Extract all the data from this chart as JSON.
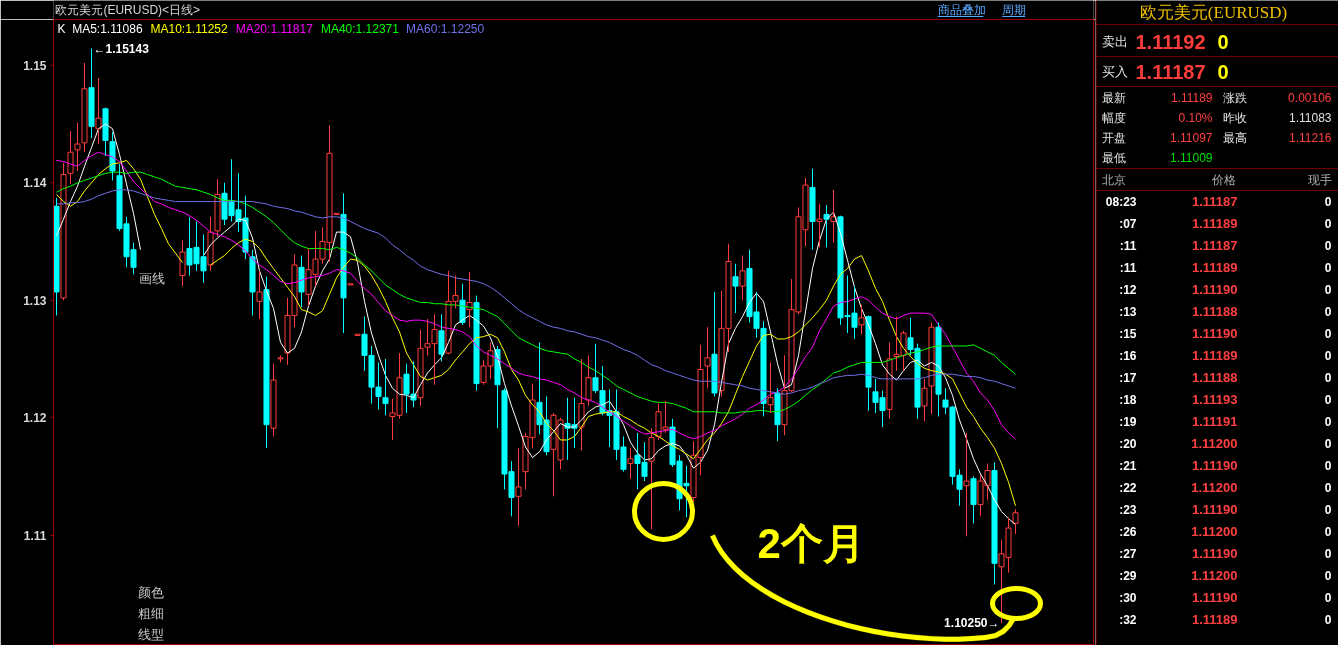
{
  "chart_data": [
    {
      "type": "candlestick",
      "title": "欧元美元(EURUSD)<日线>",
      "categories": [
        null,
        null,
        null,
        null,
        null,
        null,
        null,
        null,
        null,
        null,
        null,
        null,
        null,
        null,
        null,
        null,
        null,
        null,
        null,
        null,
        null,
        null,
        null,
        null,
        null,
        null,
        null,
        null,
        null,
        null,
        null,
        null,
        null,
        null,
        null,
        null,
        null,
        null,
        null,
        null,
        null,
        null,
        null,
        null,
        null,
        null,
        null,
        null,
        null,
        null,
        null,
        null,
        null,
        null,
        null,
        null,
        null,
        null,
        null,
        null,
        null,
        null,
        null,
        null,
        null,
        null,
        null,
        null,
        null,
        null,
        null,
        null,
        null,
        null,
        null,
        null,
        null,
        null,
        null,
        null,
        null,
        null,
        null,
        null,
        null,
        null,
        null,
        null,
        null,
        null,
        null,
        null,
        null,
        null,
        null,
        null,
        null,
        null,
        null,
        null,
        null,
        null,
        null,
        null,
        null,
        null,
        null,
        null,
        null,
        null,
        null,
        null,
        null,
        null,
        null,
        null,
        null,
        null,
        null,
        null,
        null,
        null,
        null,
        null,
        null,
        null,
        null,
        null,
        null,
        null,
        null,
        null,
        null,
        null,
        null,
        null,
        null,
        null
      ],
      "ohlc": [
        [
          1.138,
          1.1387,
          1.1287,
          1.1307
        ],
        [
          1.1302,
          1.1417,
          1.13,
          1.1407
        ],
        [
          1.1408,
          1.1444,
          1.1399,
          1.1426
        ],
        [
          1.1428,
          1.1451,
          1.141,
          1.1433
        ],
        [
          1.1434,
          1.1502,
          1.1426,
          1.148
        ],
        [
          1.1481,
          1.15143,
          1.1438,
          1.1448
        ],
        [
          1.1446,
          1.1489,
          1.1433,
          1.1455
        ],
        [
          1.1463,
          1.1464,
          1.1423,
          1.1436
        ],
        [
          1.1435,
          1.1443,
          1.1402,
          1.141
        ],
        [
          1.1406,
          1.1416,
          1.1359,
          1.1361
        ],
        [
          1.1365,
          1.1371,
          1.1328,
          1.1337
        ],
        [
          1.1343,
          1.1349,
          1.1322,
          1.1328
        ],
        null,
        null,
        null,
        null,
        null,
        null,
        [
          1.1321,
          1.1351,
          1.1312,
          1.1341
        ],
        [
          1.1344,
          1.1371,
          1.1321,
          1.133
        ],
        [
          1.1345,
          1.1367,
          1.1325,
          1.1331
        ],
        [
          1.1337,
          1.1356,
          1.1315,
          1.1325
        ],
        [
          1.133,
          1.1371,
          1.1325,
          1.1358
        ],
        [
          1.1359,
          1.1403,
          1.1354,
          1.139
        ],
        [
          1.1391,
          1.14,
          1.1364,
          1.1369
        ],
        [
          1.1384,
          1.142,
          1.1367,
          1.1372
        ],
        [
          1.1377,
          1.1408,
          1.1358,
          1.1367
        ],
        [
          1.137,
          1.1389,
          1.1335,
          1.1341
        ],
        [
          1.1337,
          1.1343,
          1.1287,
          1.1307
        ],
        [
          1.1299,
          1.1325,
          1.1284,
          1.1307
        ],
        [
          1.1309,
          1.132,
          1.1174,
          1.1194
        ],
        [
          1.1191,
          1.1246,
          1.1184,
          1.1232
        ],
        [
          1.125,
          1.1253,
          1.1247,
          1.1251
        ],
        [
          1.1255,
          1.1302,
          1.1245,
          1.1287
        ],
        [
          1.1287,
          1.1339,
          1.1277,
          1.133
        ],
        [
          1.1328,
          1.1338,
          1.1294,
          1.1307
        ],
        [
          1.1305,
          1.1344,
          1.1295,
          1.1326
        ],
        [
          1.1322,
          1.1359,
          1.1312,
          1.1335
        ],
        [
          1.1335,
          1.1362,
          1.1331,
          1.135
        ],
        [
          1.1349,
          1.1449,
          1.1333,
          1.1425
        ],
        [
          1.1373,
          1.1374,
          1.1373,
          1.1374
        ],
        [
          1.1373,
          1.1391,
          1.1272,
          1.1302
        ],
        [
          1.1313,
          1.1314,
          1.1313,
          1.1314
        ],
        [
          1.127,
          1.1271,
          1.127,
          1.1271
        ],
        [
          1.1271,
          1.1286,
          1.124,
          1.1253
        ],
        [
          1.1253,
          1.1261,
          1.1212,
          1.1226
        ],
        [
          1.1226,
          1.1247,
          1.1207,
          1.1218
        ],
        [
          1.1217,
          1.125,
          1.1202,
          1.1212
        ],
        [
          1.1201,
          1.1216,
          1.1181,
          1.1204
        ],
        [
          1.1202,
          1.1255,
          1.1199,
          1.1234
        ],
        [
          1.1237,
          1.1246,
          1.1204,
          1.122
        ],
        [
          1.122,
          1.1248,
          1.1209,
          1.1215
        ],
        [
          1.1217,
          1.1275,
          1.121,
          1.1259
        ],
        [
          1.126,
          1.1284,
          1.1253,
          1.1263
        ],
        [
          1.1263,
          1.1288,
          1.1228,
          1.1275
        ],
        [
          1.1274,
          1.1288,
          1.1248,
          1.1254
        ],
        [
          1.1255,
          1.1325,
          1.1254,
          1.1299
        ],
        [
          1.1299,
          1.1321,
          1.1293,
          1.1304
        ],
        [
          1.13,
          1.1314,
          1.1279,
          1.1281
        ],
        [
          1.1292,
          1.1324,
          1.1277,
          1.1298
        ],
        [
          1.1298,
          1.1304,
          1.1223,
          1.1229
        ],
        [
          1.123,
          1.1249,
          1.1228,
          1.1244
        ],
        [
          1.1244,
          1.1264,
          1.1233,
          1.1257
        ],
        [
          1.1258,
          1.1261,
          1.1191,
          1.1228
        ],
        [
          1.1223,
          1.1225,
          1.1139,
          1.1152
        ],
        [
          1.1154,
          1.1163,
          1.1116,
          1.1132
        ],
        [
          1.1133,
          1.1174,
          1.1108,
          1.1141
        ],
        [
          1.1154,
          1.1187,
          1.1139,
          1.1184
        ],
        [
          1.1183,
          1.1229,
          1.1174,
          1.1215
        ],
        [
          1.1213,
          1.1264,
          1.1186,
          1.1194
        ],
        [
          1.1198,
          1.1218,
          1.1168,
          1.1171
        ],
        [
          1.1173,
          1.1204,
          1.1133,
          1.1202
        ],
        [
          1.1164,
          1.12,
          1.1156,
          1.1198
        ],
        [
          1.1195,
          1.1217,
          1.1164,
          1.1191
        ],
        [
          1.1194,
          1.1217,
          1.1174,
          1.1191
        ],
        [
          1.1192,
          1.125,
          1.1172,
          1.1212
        ],
        [
          1.1215,
          1.1253,
          1.121,
          1.1234
        ],
        [
          1.1234,
          1.1263,
          1.1221,
          1.1223
        ],
        [
          1.1223,
          1.1244,
          1.1202,
          1.1204
        ],
        [
          1.1206,
          1.1224,
          1.1175,
          1.1202
        ],
        [
          1.1205,
          1.1224,
          1.1164,
          1.1173
        ],
        [
          1.1175,
          1.1184,
          1.1154,
          1.1156
        ],
        [
          1.1161,
          1.1174,
          1.1148,
          1.1165
        ],
        [
          1.1168,
          1.1187,
          1.1139,
          1.1161
        ],
        [
          1.1162,
          1.1179,
          1.1146,
          1.115
        ],
        [
          1.1163,
          1.1191,
          1.1105,
          1.1183
        ],
        [
          1.1184,
          1.1212,
          1.1181,
          1.1205
        ],
        [
          1.119,
          1.1214,
          1.1187,
          1.1192
        ],
        [
          1.1192,
          1.1199,
          1.1158,
          1.116
        ],
        [
          1.1163,
          1.1168,
          1.1121,
          1.1131
        ],
        [
          1.1144,
          1.1159,
          1.1115,
          1.1142
        ],
        [
          1.1132,
          1.118,
          1.1128,
          1.1168
        ],
        [
          1.1166,
          1.1262,
          1.1151,
          1.1241
        ],
        [
          1.1244,
          1.1277,
          1.1225,
          1.1251
        ],
        [
          1.1254,
          1.1307,
          1.1218,
          1.1221
        ],
        [
          1.1223,
          1.1308,
          1.1218,
          1.1276
        ],
        [
          1.1276,
          1.1348,
          1.1256,
          1.1333
        ],
        [
          1.132,
          1.1331,
          1.1289,
          1.1312
        ],
        [
          1.1312,
          1.1338,
          1.13,
          1.1325
        ],
        [
          1.1327,
          1.1343,
          1.1281,
          1.1286
        ],
        [
          1.129,
          1.1307,
          1.1268,
          1.1276
        ],
        [
          1.1276,
          1.1282,
          1.1201,
          1.1212
        ],
        [
          1.1211,
          1.1247,
          1.1204,
          1.1217
        ],
        [
          1.1221,
          1.1225,
          1.118,
          1.1194
        ],
        [
          1.1194,
          1.1253,
          1.1185,
          1.1223
        ],
        [
          1.1223,
          1.1318,
          1.1222,
          1.1292
        ],
        [
          1.129,
          1.1379,
          1.1288,
          1.1371
        ],
        [
          1.136,
          1.1404,
          1.1346,
          1.1398
        ],
        [
          1.1396,
          1.1412,
          1.1343,
          1.1367
        ],
        [
          1.1367,
          1.1382,
          1.1345,
          1.1369
        ],
        [
          1.1373,
          1.1381,
          1.1345,
          1.1369
        ],
        [
          1.1367,
          1.1394,
          1.1349,
          1.1371
        ],
        [
          1.1371,
          1.1372,
          1.1279,
          1.1285
        ],
        [
          1.1287,
          1.1321,
          1.1272,
          1.1286
        ],
        [
          1.1289,
          1.1312,
          1.1267,
          1.1277
        ],
        [
          1.1279,
          1.1296,
          1.1271,
          1.1285
        ],
        [
          1.1286,
          1.1287,
          1.1206,
          1.1226
        ],
        [
          1.1222,
          1.1233,
          1.1204,
          1.1213
        ],
        [
          1.1217,
          1.1223,
          1.1192,
          1.1206
        ],
        [
          1.1207,
          1.1264,
          1.1199,
          1.125
        ],
        [
          1.1252,
          1.1286,
          1.124,
          1.1254
        ],
        [
          1.1253,
          1.1274,
          1.124,
          1.1272
        ],
        [
          1.1268,
          1.1285,
          1.1253,
          1.1258
        ],
        [
          1.1259,
          1.1263,
          1.1199,
          1.1209
        ],
        [
          1.121,
          1.1233,
          1.1197,
          1.1225
        ],
        [
          1.1227,
          1.1281,
          1.1203,
          1.1277
        ],
        [
          1.1277,
          1.1281,
          1.1201,
          1.122
        ],
        [
          1.1215,
          1.1225,
          1.1203,
          1.1209
        ],
        [
          1.1209,
          1.121,
          1.1143,
          1.115
        ],
        [
          1.1151,
          1.1156,
          1.1125,
          1.1139
        ],
        [
          1.1142,
          1.1187,
          1.1099,
          1.1146
        ],
        [
          1.1148,
          1.115,
          1.111,
          1.1126
        ],
        [
          1.1126,
          1.1151,
          1.1116,
          1.1146
        ],
        [
          1.1142,
          1.1161,
          1.113,
          1.1155
        ],
        [
          1.1155,
          1.1162,
          1.1058,
          1.1076
        ],
        [
          1.1073,
          1.1096,
          1.1025,
          1.1084
        ],
        [
          1.1081,
          1.1115,
          1.1068,
          1.1106
        ],
        [
          1.111,
          1.1122,
          1.1101,
          1.1119
        ]
      ],
      "colors": [
        "#00ffff",
        "#ff3c3c",
        "#ff3c3c",
        "#ff3c3c",
        "#ff3c3c",
        "#00ffff",
        "#ff3c3c",
        "#00ffff",
        "#00ffff",
        "#00ffff",
        "#00ffff",
        "#00ffff",
        null,
        null,
        null,
        null,
        null,
        null,
        "#ff3c3c",
        "#00ffff",
        "#00ffff",
        "#00ffff",
        "#ff3c3c",
        "#ff3c3c",
        "#00ffff",
        "#00ffff",
        "#00ffff",
        "#00ffff",
        "#00ffff",
        "#ff3c3c",
        "#00ffff",
        "#ff3c3c",
        "#ff3c3c",
        "#ff3c3c",
        "#ff3c3c",
        "#00ffff",
        "#ff3c3c",
        "#ff3c3c",
        "#ff3c3c",
        "#ff3c3c",
        "#ff3c3c",
        "#00ffff",
        "#ff3c3c",
        "#ff3c3c",
        "#00ffff",
        "#00ffff",
        "#00ffff",
        "#00ffff",
        "#ff3c3c",
        "#ff3c3c",
        "#00ffff",
        "#00ffff",
        "#ff3c3c",
        "#ff3c3c",
        "#ff3c3c",
        "#00ffff",
        "#ff3c3c",
        "#ff3c3c",
        "#00ffff",
        "#ff3c3c",
        "#00ffff",
        "#ff3c3c",
        "#ff3c3c",
        "#00ffff",
        "#00ffff",
        "#00ffff",
        "#ff3c3c",
        "#ff3c3c",
        "#ff3c3c",
        "#00ffff",
        "#00ffff",
        "#ff3c3c",
        "#ff3c3c",
        "#00ffff",
        "#00ffff",
        "#ff3c3c",
        "#ff3c3c",
        "#00ffff",
        "#00ffff",
        "#00ffff",
        "#00ffff",
        "#00ffff",
        "#ff3c3c",
        "#00ffff",
        "#00ffff",
        "#ff3c3c",
        "#ff3c3c",
        "#ff3c3c",
        "#00ffff",
        "#00ffff",
        "#00ffff",
        "#ff3c3c",
        "#ff3c3c",
        "#ff3c3c",
        "#00ffff",
        "#ff3c3c",
        "#ff3c3c",
        "#00ffff",
        "#ff3c3c",
        "#00ffff",
        "#00ffff",
        "#00ffff",
        "#ff3c3c",
        "#00ffff",
        "#ff3c3c",
        "#ff3c3c",
        "#ff3c3c",
        "#ff3c3c",
        "#00ffff",
        "#ff3c3c",
        "#00ffff",
        "#ff3c3c",
        "#00ffff",
        "#00ffff",
        "#00ffff",
        "#ff3c3c",
        "#00ffff",
        "#00ffff",
        "#00ffff",
        "#ff3c3c",
        "#ff3c3c",
        "#ff3c3c",
        "#00ffff",
        "#00ffff",
        "#ff3c3c",
        "#ff3c3c",
        "#00ffff",
        "#00ffff",
        "#00ffff",
        "#00ffff",
        "#ff3c3c",
        "#00ffff",
        "#ff3c3c",
        "#ff3c3c",
        "#00ffff",
        "#ff3c3c",
        "#ff3c3c",
        "#ff3c3c"
      ],
      "series": [
        {
          "name": "MA5:1.11086",
          "type": "line",
          "color": "#ffffff",
          "values": [
            1.1355,
            1.1369,
            1.1384,
            1.1397,
            1.1414,
            1.143,
            1.1446,
            1.145,
            1.1446,
            1.1424,
            1.1399,
            1.1374,
            1.1343,
            null,
            null,
            null,
            null,
            null,
            null,
            null,
            null,
            1.1338,
            1.1347,
            1.1353,
            1.1358,
            1.1363,
            1.1369,
            1.1368,
            1.1353,
            1.1325,
            1.1308,
            1.1293,
            1.1264,
            1.1255,
            1.1259,
            1.1273,
            1.1295,
            1.1312,
            1.1325,
            1.1335,
            1.1358,
            1.1358,
            1.1354,
            1.1332,
            1.1299,
            1.1272,
            1.1253,
            1.1236,
            1.1225,
            1.122,
            1.1219,
            1.1217,
            1.1228,
            1.1238,
            1.1245,
            1.1251,
            1.1264,
            1.1279,
            1.1283,
            1.1287,
            1.1283,
            1.1278,
            1.1268,
            1.1252,
            1.1229,
            1.121,
            1.1193,
            1.1175,
            1.1166,
            1.1171,
            1.1181,
            1.1188,
            1.1195,
            1.1192,
            1.1192,
            1.1198,
            1.1205,
            1.1209,
            1.1211,
            1.1214,
            1.1205,
            1.1194,
            1.1179,
            1.117,
            1.1164,
            1.1165,
            1.1172,
            1.1176,
            1.1178,
            1.1176,
            1.1168,
            1.1157,
            1.1162,
            1.1172,
            1.1194,
            1.123,
            1.1263,
            1.1276,
            1.1286,
            1.1298,
            1.1306,
            1.1299,
            1.1273,
            1.1246,
            1.1225,
            1.1228,
            1.1253,
            1.129,
            1.1327,
            1.1351,
            1.1369,
            1.1375,
            1.1357,
            1.1334,
            1.1311,
            1.1293,
            1.1279,
            1.1263,
            1.1245,
            1.1237,
            1.1232,
            1.124,
            1.1247,
            1.1249,
            1.1244,
            1.1247,
            1.1244,
            1.1234,
            1.1219,
            1.1198,
            1.1182,
            1.1165,
            1.1152,
            1.1142,
            1.113,
            1.112,
            1.1114,
            1.1109
          ]
        },
        {
          "name": "MA10:1.11252",
          "type": "line",
          "color": "#ffff00",
          "values": [
            1.139,
            1.1384,
            1.138,
            1.1384,
            1.1393,
            1.14,
            1.1407,
            1.1412,
            1.1416,
            1.1417,
            1.1419,
            1.1412,
            1.1403,
            1.1388,
            1.1373,
            1.1361,
            1.1348,
            1.134,
            1.1332,
            null,
            null,
            null,
            1.133,
            1.1334,
            1.1338,
            1.1344,
            1.1349,
            1.1352,
            1.135,
            1.1344,
            1.1335,
            1.1327,
            1.1319,
            1.1311,
            1.1303,
            1.1292,
            1.129,
            1.1287,
            1.1291,
            1.1305,
            1.1319,
            1.1328,
            1.1335,
            1.1334,
            1.1329,
            1.1321,
            1.1311,
            1.1299,
            1.1285,
            1.1273,
            1.1255,
            1.1245,
            1.1235,
            1.1232,
            1.1234,
            1.1236,
            1.1241,
            1.1249,
            1.1256,
            1.1263,
            1.1268,
            1.1269,
            1.1271,
            1.1268,
            1.1256,
            1.1241,
            1.1232,
            1.1219,
            1.1211,
            1.1205,
            1.1195,
            1.1189,
            1.1181,
            1.1181,
            1.1184,
            1.1192,
            1.1201,
            1.1203,
            1.1204,
            1.1205,
            1.1205,
            1.1201,
            1.1198,
            1.1194,
            1.1191,
            1.1187,
            1.1184,
            1.118,
            1.1176,
            1.1173,
            1.1169,
            1.1165,
            1.1173,
            1.1181,
            1.1187,
            1.1195,
            1.1205,
            1.122,
            1.1235,
            1.1248,
            1.1261,
            1.127,
            1.1271,
            1.1267,
            1.1267,
            1.1269,
            1.1273,
            1.1279,
            1.1285,
            1.1292,
            1.13,
            1.1312,
            1.1322,
            1.1327,
            1.1335,
            1.1338,
            1.1325,
            1.131,
            1.1299,
            1.1283,
            1.1269,
            1.1259,
            1.1252,
            1.1246,
            1.1242,
            1.124,
            1.1239,
            1.1237,
            1.1233,
            1.1221,
            1.1209,
            1.1201,
            1.1191,
            1.1183,
            1.1174,
            1.1161,
            1.1145,
            1.1125
          ]
        },
        {
          "name": "MA20:1.11817",
          "type": "line",
          "color": "#ff00ff",
          "values": [
            1.1419,
            1.1418,
            1.1416,
            1.1414,
            1.1419,
            1.1423,
            1.1426,
            1.1424,
            1.1422,
            1.1418,
            1.141,
            1.1401,
            1.1395,
            1.139,
            1.1384,
            1.1382,
            1.1379,
            1.1377,
            1.1375,
            1.1372,
            1.1368,
            1.1363,
            1.1358,
            1.1356,
            1.1354,
            1.1351,
            1.1347,
            1.1342,
            1.1335,
            1.133,
            1.1326,
            1.1321,
            1.1316,
            1.1314,
            1.1315,
            1.1317,
            1.1319,
            1.132,
            1.1321,
            1.1323,
            1.1326,
            1.1325,
            1.1323,
            1.1316,
            1.131,
            1.1305,
            1.1298,
            1.1291,
            1.1287,
            1.1283,
            1.1282,
            1.1283,
            1.1283,
            1.1282,
            1.128,
            1.1277,
            1.1276,
            1.1275,
            1.1273,
            1.1269,
            1.1261,
            1.1256,
            1.1253,
            1.125,
            1.1246,
            1.1242,
            1.1238,
            1.1236,
            1.1235,
            1.1233,
            1.1232,
            1.123,
            1.1228,
            1.1224,
            1.1221,
            1.1217,
            1.1215,
            1.1213,
            1.1209,
            1.1205,
            1.1201,
            1.1197,
            1.1193,
            1.1189,
            1.1186,
            1.1187,
            1.1188,
            1.1189,
            1.119,
            1.1187,
            1.1184,
            1.1182,
            1.1184,
            1.1187,
            1.1189,
            1.1193,
            1.1196,
            1.1199,
            1.1203,
            1.1208,
            1.1211,
            1.1215,
            1.122,
            1.1222,
            1.1226,
            1.1233,
            1.1242,
            1.1252,
            1.126,
            1.1274,
            1.1284,
            1.1295,
            1.1298,
            1.1299,
            1.1301,
            1.1303,
            1.13,
            1.1294,
            1.1289,
            1.1286,
            1.1284,
            1.1287,
            1.1289,
            1.1289,
            1.1289,
            1.1288,
            1.1279,
            1.1271,
            1.126,
            1.1249,
            1.1238,
            1.1231,
            1.1221,
            1.1215,
            1.1206,
            1.1194,
            1.1187,
            1.1182
          ]
        },
        {
          "name": "MA40:1.12371",
          "type": "line",
          "color": "#00ff00",
          "values": [
            1.1392,
            1.1395,
            1.1397,
            1.14,
            1.1402,
            1.1404,
            1.1406,
            1.1408,
            1.1409,
            1.1409,
            1.1408,
            1.1409,
            1.1409,
            1.1407,
            1.1405,
            1.1403,
            1.14,
            1.1397,
            1.1396,
            1.1395,
            1.1394,
            1.1392,
            1.139,
            1.1387,
            1.1385,
            1.1385,
            1.1384,
            1.1382,
            1.1379,
            1.1375,
            1.1371,
            1.1366,
            1.136,
            1.1354,
            1.1349,
            1.1346,
            1.1344,
            1.1344,
            1.1344,
            1.1343,
            1.1345,
            1.1343,
            1.134,
            1.1336,
            1.133,
            1.1325,
            1.1319,
            1.1313,
            1.1309,
            1.1305,
            1.1302,
            1.13,
            1.1298,
            1.1298,
            1.1297,
            1.1297,
            1.1296,
            1.1296,
            1.1295,
            1.1294,
            1.1293,
            1.1292,
            1.1289,
            1.1286,
            1.128,
            1.1274,
            1.1268,
            1.1265,
            1.1262,
            1.1259,
            1.1257,
            1.1256,
            1.1255,
            1.1254,
            1.125,
            1.1247,
            1.1243,
            1.124,
            1.1236,
            1.1232,
            1.1227,
            1.1224,
            1.1221,
            1.1218,
            1.1216,
            1.1214,
            1.1213,
            1.1213,
            1.1212,
            1.121,
            1.1208,
            1.1205,
            1.1205,
            1.1205,
            1.1205,
            1.1204,
            1.1204,
            1.1204,
            1.1205,
            1.1205,
            1.1206,
            1.1206,
            1.1205,
            1.1205,
            1.1207,
            1.121,
            1.1214,
            1.1219,
            1.1224,
            1.1228,
            1.1233,
            1.1238,
            1.124,
            1.1243,
            1.1245,
            1.1247,
            1.1247,
            1.1247,
            1.1247,
            1.1249,
            1.1251,
            1.1253,
            1.1255,
            1.1256,
            1.1258,
            1.126,
            1.1261,
            1.1261,
            1.1261,
            1.1261,
            1.1261,
            1.1262,
            1.1259,
            1.1256,
            1.1253,
            1.1247,
            1.1242,
            1.1237
          ]
        },
        {
          "name": "MA60:1.12250",
          "type": "line",
          "color": "#7070e8",
          "values": [
            1.1382,
            1.1382,
            1.1383,
            1.1383,
            1.1384,
            1.1386,
            1.1389,
            1.1391,
            1.1393,
            1.1394,
            1.1394,
            1.1393,
            1.1391,
            1.1389,
            1.1387,
            1.1386,
            1.1385,
            1.1384,
            1.1384,
            1.1384,
            1.1384,
            1.1384,
            1.1384,
            1.1384,
            1.1384,
            1.1384,
            1.1384,
            1.1384,
            1.1384,
            1.1383,
            1.1382,
            1.138,
            1.1379,
            1.1378,
            1.1376,
            1.1375,
            1.1373,
            1.1371,
            1.137,
            1.1371,
            1.1371,
            1.137,
            1.1367,
            1.1364,
            1.1361,
            1.1359,
            1.1357,
            1.1353,
            1.1347,
            1.1343,
            1.1338,
            1.1334,
            1.1329,
            1.1326,
            1.1324,
            1.1322,
            1.1321,
            1.1319,
            1.1318,
            1.1317,
            1.1316,
            1.1314,
            1.1311,
            1.1307,
            1.1302,
            1.1297,
            1.1292,
            1.1288,
            1.1285,
            1.1282,
            1.1279,
            1.1277,
            1.1276,
            1.1274,
            1.1273,
            1.1271,
            1.1269,
            1.1268,
            1.1266,
            1.1264,
            1.1261,
            1.1258,
            1.1256,
            1.1253,
            1.1249,
            1.1245,
            1.1243,
            1.124,
            1.1238,
            1.1236,
            1.1234,
            1.1232,
            1.1231,
            1.1231,
            1.1231,
            1.123,
            1.1229,
            1.1228,
            1.1227,
            1.1225,
            1.1224,
            1.1223,
            1.1222,
            1.1221,
            1.122,
            1.1221,
            1.1223,
            1.1224,
            1.1226,
            1.1229,
            1.1231,
            1.1234,
            1.1235,
            1.1236,
            1.1236,
            1.1237,
            1.1236,
            1.1234,
            1.1233,
            1.1233,
            1.1233,
            1.1233,
            1.1233,
            1.1233,
            1.1234,
            1.1236,
            1.1237,
            1.1237,
            1.1237,
            1.1236,
            1.1235,
            1.1235,
            1.1234,
            1.1232,
            1.1231,
            1.1229,
            1.1227,
            1.1225
          ]
        }
      ],
      "ylim": [
        1.1006,
        1.1539
      ],
      "yticks": [
        1.11,
        1.12,
        1.13,
        1.14,
        1.15
      ],
      "tick_labels": "y",
      "legend": "top left",
      "legend_title": "K",
      "annotations": [
        "←1.15143",
        "1.10250→",
        "2个月",
        "商品叠加",
        "周期",
        "画线",
        "颜色",
        "粗细",
        "线型"
      ]
    },
    {
      "type": "other",
      "title": "欧元美元(EURUSD)",
      "annotations": [
        "卖出",
        "1.11192",
        "0",
        "买入",
        "1.11187",
        "0",
        "最新",
        "1.11189",
        "涨跌",
        "0.00106",
        "幅度",
        "0.10%",
        "昨收",
        "1.11083",
        "开盘",
        "1.11097",
        "最高",
        "1.11216",
        "最低",
        "1.11009",
        "北京",
        "价格",
        "现手",
        "08:23",
        "1.11187",
        "0",
        ":07",
        "1.11189",
        "0",
        ":11",
        "1.11187",
        "0",
        ":11",
        "1.11189",
        "0",
        ":12",
        "1.11190",
        "0",
        ":13",
        "1.11188",
        "0",
        ":15",
        "1.11190",
        "0",
        ":16",
        "1.11189",
        "0",
        ":17",
        "1.11188",
        "0",
        ":18",
        "1.11193",
        "0",
        ":19",
        "1.11191",
        "0",
        ":20",
        "1.11200",
        "0",
        ":21",
        "1.11190",
        "0",
        ":22",
        "1.11200",
        "0",
        ":23",
        "1.11190",
        "0",
        ":26",
        "1.11200",
        "0",
        ":27",
        "1.11190",
        "0",
        ":29",
        "1.11200",
        "0",
        ":30",
        "1.11190",
        "0",
        ":32",
        "1.11189",
        "0"
      ]
    }
  ]
}
